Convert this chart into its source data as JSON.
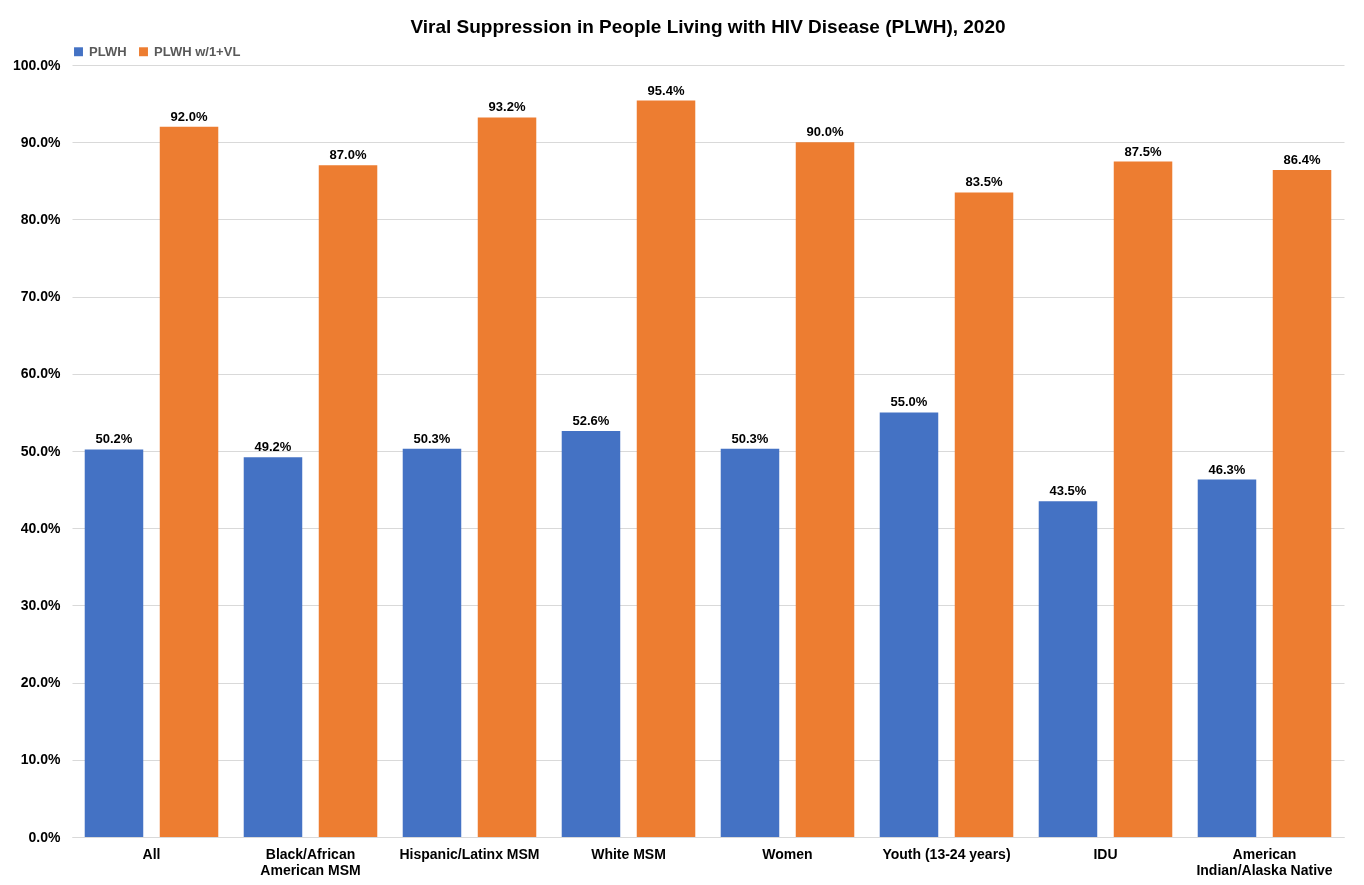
{
  "chart_data": {
    "type": "bar",
    "title": "Viral Suppression in People Living with HIV Disease (PLWH), 2020",
    "categories": [
      "All",
      "Black/African American MSM",
      "Hispanic/Latinx MSM",
      "White MSM",
      "Women",
      "Youth (13-24 years)",
      "IDU",
      "American Indian/Alaska Native"
    ],
    "series": [
      {
        "name": "PLWH",
        "color": "#4472c4",
        "values": [
          50.2,
          49.2,
          50.3,
          52.6,
          50.3,
          55.0,
          43.5,
          46.3
        ],
        "value_labels": [
          "50.2%",
          "49.2%",
          "50.3%",
          "52.6%",
          "50.3%",
          "55.0%",
          "43.5%",
          "46.3%"
        ]
      },
      {
        "name": "PLWH w/1+VL",
        "color": "#ed7d31",
        "values": [
          92.0,
          87.0,
          93.2,
          95.4,
          90.0,
          83.5,
          87.5,
          86.4
        ],
        "value_labels": [
          "92.0%",
          "87.0%",
          "93.2%",
          "95.4%",
          "90.0%",
          "83.5%",
          "87.5%",
          "86.4%"
        ]
      }
    ],
    "ylim": [
      0,
      100
    ],
    "yticks": [
      {
        "value": 0,
        "label": "0.0%"
      },
      {
        "value": 10,
        "label": "10.0%"
      },
      {
        "value": 20,
        "label": "20.0%"
      },
      {
        "value": 30,
        "label": "30.0%"
      },
      {
        "value": 40,
        "label": "40.0%"
      },
      {
        "value": 50,
        "label": "50.0%"
      },
      {
        "value": 60,
        "label": "60.0%"
      },
      {
        "value": 70,
        "label": "70.0%"
      },
      {
        "value": 80,
        "label": "80.0%"
      },
      {
        "value": 90,
        "label": "90.0%"
      },
      {
        "value": 100,
        "label": "100.0%"
      }
    ],
    "grid": "y",
    "legend": "top"
  }
}
